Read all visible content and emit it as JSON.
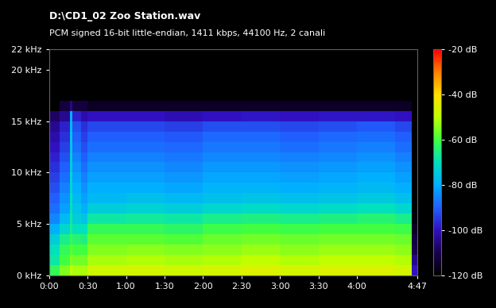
{
  "chart_data": {
    "type": "heatmap",
    "title": "D:\\CD1_02 Zoo Station.wav",
    "subtitle": "PCM signed 16-bit little-endian, 1411 kbps, 44100 Hz, 2 canali",
    "x_edges": [
      0,
      8,
      16,
      18,
      25,
      30,
      60,
      90,
      120,
      150,
      180,
      210,
      240,
      270,
      283,
      287
    ],
    "y_edges": [
      0,
      1,
      2,
      3,
      4,
      5,
      6,
      7,
      8,
      9,
      10,
      11,
      12,
      13,
      14,
      15,
      16,
      17,
      18,
      19,
      20,
      21,
      22
    ],
    "cells": [
      [
        -62,
        -68,
        -70,
        -74,
        -80,
        -85,
        -88,
        -90,
        -92,
        -94,
        -96,
        -98,
        -100,
        -102,
        -104,
        -108,
        -130,
        -130,
        -130,
        -130,
        -130,
        -130
      ],
      [
        -55,
        -60,
        -62,
        -66,
        -72,
        -78,
        -82,
        -84,
        -86,
        -88,
        -90,
        -92,
        -94,
        -96,
        -98,
        -104,
        -112,
        -130,
        -130,
        -130,
        -130,
        -130
      ],
      [
        -50,
        -55,
        -58,
        -62,
        -66,
        -68,
        -70,
        -70,
        -72,
        -72,
        -74,
        -74,
        -76,
        -76,
        -78,
        -80,
        -105,
        -130,
        -130,
        -130,
        -130,
        -130
      ],
      [
        -52,
        -56,
        -60,
        -64,
        -70,
        -74,
        -76,
        -78,
        -80,
        -82,
        -84,
        -86,
        -88,
        -90,
        -92,
        -98,
        -112,
        -130,
        -130,
        -130,
        -130,
        -130
      ],
      [
        -52,
        -56,
        -60,
        -65,
        -70,
        -76,
        -80,
        -82,
        -84,
        -86,
        -88,
        -90,
        -92,
        -94,
        -96,
        -102,
        -112,
        -130,
        -130,
        -130,
        -130,
        -130
      ],
      [
        -48,
        -52,
        -55,
        -58,
        -62,
        -68,
        -74,
        -78,
        -80,
        -82,
        -84,
        -86,
        -88,
        -90,
        -93,
        -100,
        -115,
        -130,
        -130,
        -130,
        -130,
        -130
      ],
      [
        -47,
        -51,
        -54,
        -58,
        -62,
        -67,
        -73,
        -77,
        -80,
        -82,
        -84,
        -86,
        -88,
        -90,
        -93,
        -100,
        -115,
        -130,
        -130,
        -130,
        -130,
        -130
      ],
      [
        -48,
        -52,
        -55,
        -59,
        -63,
        -68,
        -74,
        -78,
        -81,
        -83,
        -85,
        -87,
        -89,
        -91,
        -94,
        -101,
        -115,
        -130,
        -130,
        -130,
        -130,
        -130
      ],
      [
        -47,
        -51,
        -54,
        -57,
        -61,
        -66,
        -72,
        -77,
        -79,
        -81,
        -83,
        -85,
        -87,
        -89,
        -92,
        -100,
        -115,
        -130,
        -130,
        -130,
        -130,
        -130
      ],
      [
        -46,
        -50,
        -53,
        -56,
        -60,
        -65,
        -71,
        -76,
        -79,
        -81,
        -83,
        -85,
        -87,
        -89,
        -92,
        -99,
        -115,
        -130,
        -130,
        -130,
        -130,
        -130
      ],
      [
        -47,
        -51,
        -54,
        -57,
        -61,
        -66,
        -72,
        -77,
        -80,
        -82,
        -84,
        -86,
        -88,
        -90,
        -93,
        -100,
        -115,
        -130,
        -130,
        -130,
        -130,
        -130
      ],
      [
        -46,
        -50,
        -53,
        -56,
        -60,
        -65,
        -71,
        -76,
        -79,
        -81,
        -83,
        -85,
        -87,
        -89,
        -92,
        -99,
        -115,
        -130,
        -130,
        -130,
        -130,
        -130
      ],
      [
        -46,
        -50,
        -53,
        -56,
        -60,
        -64,
        -70,
        -75,
        -78,
        -80,
        -82,
        -84,
        -86,
        -88,
        -91,
        -99,
        -115,
        -130,
        -130,
        -130,
        -130,
        -130
      ],
      [
        -47,
        -51,
        -54,
        -57,
        -61,
        -66,
        -72,
        -77,
        -80,
        -82,
        -84,
        -86,
        -88,
        -90,
        -93,
        -100,
        -115,
        -130,
        -130,
        -130,
        -130,
        -130
      ],
      [
        -100,
        -105,
        -110,
        -112,
        -115,
        -118,
        -120,
        -130,
        -130,
        -130,
        -130,
        -130,
        -130,
        -130,
        -130,
        -130,
        -130,
        -130,
        -130,
        -130,
        -130,
        -130
      ]
    ],
    "xlim": [
      0,
      287
    ],
    "ylim": [
      0,
      22
    ],
    "xticks": [
      {
        "value": 0,
        "label": "0:00"
      },
      {
        "value": 30,
        "label": "0:30"
      },
      {
        "value": 60,
        "label": "1:00"
      },
      {
        "value": 90,
        "label": "1:30"
      },
      {
        "value": 120,
        "label": "2:00"
      },
      {
        "value": 150,
        "label": "2:30"
      },
      {
        "value": 180,
        "label": "3:00"
      },
      {
        "value": 210,
        "label": "3:30"
      },
      {
        "value": 240,
        "label": "4:00"
      },
      {
        "value": 287,
        "label": "4:47"
      }
    ],
    "yticks": [
      {
        "value": 0,
        "label": "0 kHz"
      },
      {
        "value": 5,
        "label": "5 kHz"
      },
      {
        "value": 10,
        "label": "10 kHz"
      },
      {
        "value": 15,
        "label": "15 kHz"
      },
      {
        "value": 20,
        "label": "20 kHz"
      },
      {
        "value": 22,
        "label": "22 kHz"
      }
    ],
    "colorbar": {
      "range": [
        -120,
        -20
      ],
      "ticks": [
        {
          "value": -20,
          "label": "-20 dB"
        },
        {
          "value": -40,
          "label": "-40 dB"
        },
        {
          "value": -60,
          "label": "-60 dB"
        },
        {
          "value": -80,
          "label": "-80 dB"
        },
        {
          "value": -100,
          "label": "-100 dB"
        },
        {
          "value": -120,
          "label": "-120 dB"
        }
      ]
    }
  }
}
